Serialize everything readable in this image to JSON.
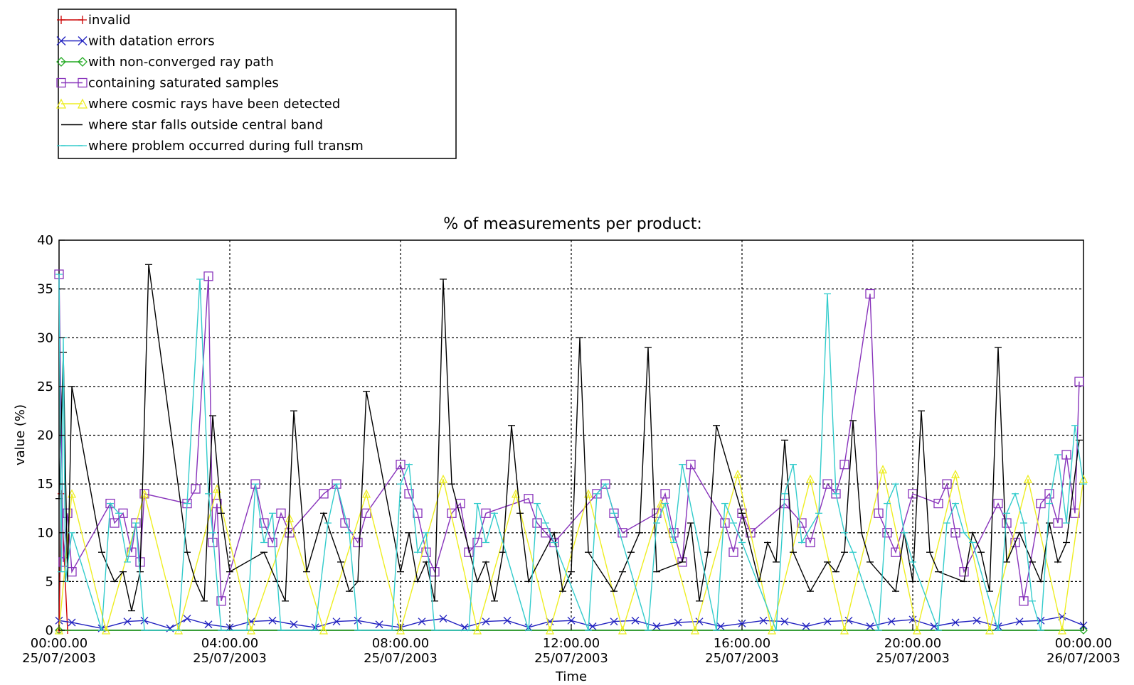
{
  "chart_data": {
    "type": "line",
    "title": "% of measurements per product:",
    "xlabel": "Time",
    "ylabel": "value (%)",
    "ylim": [
      0,
      40
    ],
    "xlim": [
      "00:00.00 25/07/2003",
      "00:00.00 26/07/2003"
    ],
    "grid": true,
    "legend_position": "top-left",
    "yticks": [
      "0",
      "5",
      "10",
      "15",
      "20",
      "25",
      "30",
      "35",
      "40"
    ],
    "xticks": [
      {
        "time": "00:00.00",
        "date": "25/07/2003"
      },
      {
        "time": "04:00.00",
        "date": "25/07/2003"
      },
      {
        "time": "08:00.00",
        "date": "25/07/2003"
      },
      {
        "time": "12:00.00",
        "date": "25/07/2003"
      },
      {
        "time": "16:00.00",
        "date": "25/07/2003"
      },
      {
        "time": "20:00.00",
        "date": "25/07/2003"
      },
      {
        "time": "00:00.00",
        "date": "26/07/2003"
      }
    ],
    "series": [
      {
        "name": "invalid",
        "color": "#cc0000",
        "marker": "plus",
        "x": [
          0.0,
          0.05,
          0.2
        ],
        "y": [
          0,
          14,
          0
        ]
      },
      {
        "name": "with datation errors",
        "color": "#1f1fbf",
        "marker": "x",
        "x": [
          0.0,
          0.3,
          1.0,
          1.6,
          2.0,
          2.6,
          3.0,
          3.5,
          4.0,
          4.5,
          5.0,
          5.5,
          6.0,
          6.5,
          7.0,
          7.5,
          8.0,
          8.5,
          9.0,
          9.5,
          10.0,
          10.5,
          11.0,
          11.5,
          12.0,
          12.5,
          13.0,
          13.5,
          14.0,
          14.5,
          15.0,
          15.5,
          16.0,
          16.5,
          17.0,
          17.5,
          18.0,
          18.5,
          19.0,
          19.5,
          20.0,
          20.5,
          21.0,
          21.5,
          22.0,
          22.5,
          23.0,
          23.5,
          24.0
        ],
        "y": [
          1.0,
          0.8,
          0.2,
          0.9,
          1.0,
          0.2,
          1.2,
          0.6,
          0.3,
          0.9,
          1.0,
          0.6,
          0.3,
          0.9,
          1.0,
          0.6,
          0.3,
          0.9,
          1.2,
          0.3,
          0.9,
          1.0,
          0.3,
          0.9,
          1.0,
          0.4,
          0.9,
          1.0,
          0.4,
          0.8,
          0.9,
          0.4,
          0.7,
          1.0,
          0.9,
          0.4,
          0.9,
          1.0,
          0.4,
          0.9,
          1.1,
          0.4,
          0.8,
          1.0,
          0.4,
          0.9,
          1.0,
          1.4,
          0.5
        ]
      },
      {
        "name": "with non-converged ray path",
        "color": "#22aa22",
        "marker": "diamond",
        "x": [
          0.0,
          24.0
        ],
        "y": [
          0,
          0
        ]
      },
      {
        "name": "containing saturated samples",
        "color": "#8833bb",
        "marker": "square",
        "x": [
          0.0,
          0.1,
          0.2,
          0.3,
          1.2,
          1.3,
          1.5,
          1.7,
          1.8,
          1.9,
          2.0,
          3.0,
          3.2,
          3.5,
          3.6,
          3.7,
          3.8,
          4.6,
          4.8,
          5.0,
          5.2,
          5.4,
          6.2,
          6.5,
          6.7,
          7.0,
          7.2,
          8.0,
          8.2,
          8.4,
          8.6,
          8.8,
          9.2,
          9.4,
          9.6,
          9.8,
          10.0,
          11.0,
          11.2,
          11.4,
          11.6,
          12.6,
          12.8,
          13.0,
          13.2,
          14.0,
          14.2,
          14.4,
          14.6,
          14.8,
          15.6,
          15.8,
          16.0,
          16.2,
          17.0,
          17.4,
          17.6,
          18.0,
          18.2,
          18.4,
          19.0,
          19.2,
          19.4,
          19.6,
          20.0,
          20.6,
          20.8,
          21.0,
          21.2,
          22.0,
          22.2,
          22.4,
          22.6,
          23.0,
          23.2,
          23.4,
          23.6,
          23.8,
          23.9
        ],
        "y": [
          36.5,
          7,
          12,
          6,
          13,
          11,
          12,
          8,
          11,
          7,
          14,
          13,
          14.5,
          36.3,
          9,
          13,
          3,
          15,
          11,
          9,
          12,
          10,
          14,
          15,
          11,
          9,
          12,
          17,
          14,
          12,
          8,
          6,
          12,
          13,
          8,
          9,
          12,
          13.5,
          11,
          10,
          9,
          14,
          15,
          12,
          10,
          12,
          14,
          10,
          7,
          17,
          11,
          8,
          12,
          10,
          13,
          11,
          9,
          15,
          14,
          17,
          34.5,
          12,
          10,
          8,
          14,
          13,
          15,
          10,
          6,
          13,
          11,
          9,
          3,
          13,
          14,
          11,
          18,
          12,
          25.5
        ]
      },
      {
        "name": "where cosmic rays have been detected",
        "color": "#eeee22",
        "marker": "triangle",
        "x": [
          0.0,
          0.3,
          1.1,
          2.0,
          2.8,
          3.7,
          4.5,
          5.4,
          6.2,
          7.2,
          8.0,
          9.0,
          9.8,
          10.7,
          11.5,
          12.4,
          13.2,
          14.1,
          14.9,
          15.9,
          16.7,
          17.6,
          18.4,
          19.3,
          20.1,
          21.0,
          21.8,
          22.7,
          23.5,
          24.0
        ],
        "y": [
          0,
          14,
          0,
          14,
          0,
          14.5,
          0,
          11.5,
          0,
          14,
          0,
          15.5,
          0,
          14,
          0,
          14,
          0,
          13,
          0,
          16,
          0,
          15.5,
          0,
          16.5,
          0,
          16,
          0,
          15.5,
          0,
          15.5
        ]
      },
      {
        "name": "where star falls outside central band",
        "color": "#000000",
        "marker": "tick",
        "x": [
          0.0,
          0.1,
          0.2,
          0.3,
          1.0,
          1.3,
          1.5,
          1.7,
          1.9,
          2.1,
          3.0,
          3.2,
          3.4,
          3.6,
          3.8,
          4.0,
          4.8,
          5.1,
          5.3,
          5.5,
          5.8,
          6.2,
          6.6,
          6.8,
          7.0,
          7.2,
          8.0,
          8.2,
          8.4,
          8.6,
          8.8,
          9.0,
          9.2,
          9.8,
          10.0,
          10.2,
          10.4,
          10.6,
          10.8,
          11.0,
          11.6,
          11.8,
          12.0,
          12.2,
          12.4,
          13.0,
          13.2,
          13.4,
          13.6,
          13.8,
          14.0,
          14.6,
          14.8,
          15.0,
          15.2,
          15.4,
          16.0,
          16.4,
          16.6,
          16.8,
          17.0,
          17.2,
          17.6,
          18.0,
          18.2,
          18.4,
          18.6,
          18.8,
          19.0,
          19.6,
          19.8,
          20.0,
          20.2,
          20.4,
          20.6,
          21.2,
          21.4,
          21.6,
          21.8,
          22.0,
          22.2,
          22.5,
          22.8,
          23.0,
          23.2,
          23.4,
          23.6,
          23.9
        ],
        "y": [
          13.5,
          28.5,
          5,
          25,
          8,
          5,
          6,
          2,
          6,
          37.5,
          8,
          5,
          3,
          22,
          12,
          6,
          8,
          5,
          3,
          22.5,
          6,
          12,
          7,
          4,
          5,
          24.5,
          6,
          10,
          5,
          7,
          3,
          36,
          15,
          5,
          7,
          3,
          8,
          21,
          12,
          5,
          10,
          4,
          6,
          30,
          8,
          4,
          6,
          8,
          10,
          29,
          6,
          7,
          11,
          3,
          8,
          21,
          12,
          5,
          9,
          7,
          19.5,
          8,
          4,
          7,
          6,
          8,
          21.5,
          10,
          7,
          4,
          10,
          5,
          22.5,
          8,
          6,
          5,
          10,
          8,
          4,
          29,
          7,
          10,
          7,
          5,
          11,
          7,
          9,
          19.5
        ]
      },
      {
        "name": "where problem occurred during full transm",
        "color": "#33cccc",
        "marker": "tick",
        "x": [
          0.0,
          0.05,
          0.1,
          0.15,
          0.3,
          1.0,
          1.2,
          1.4,
          1.6,
          1.8,
          2.0,
          2.8,
          3.0,
          3.3,
          3.5,
          3.6,
          3.8,
          4.4,
          4.6,
          4.8,
          5.0,
          5.2,
          6.0,
          6.3,
          6.5,
          6.8,
          7.0,
          7.8,
          8.0,
          8.2,
          8.4,
          8.6,
          8.8,
          9.6,
          9.8,
          10.0,
          10.2,
          11.0,
          11.2,
          11.4,
          11.6,
          12.4,
          12.6,
          12.8,
          13.0,
          13.8,
          14.0,
          14.2,
          14.4,
          14.6,
          15.4,
          15.6,
          15.8,
          16.0,
          16.8,
          17.0,
          17.2,
          17.4,
          17.8,
          18.0,
          18.2,
          18.4,
          18.6,
          19.2,
          19.4,
          19.6,
          19.8,
          20.0,
          20.6,
          20.8,
          21.0,
          21.2,
          21.4,
          22.0,
          22.2,
          22.4,
          22.6,
          22.8,
          23.0,
          23.2,
          23.4,
          23.6,
          23.8,
          24.0
        ],
        "y": [
          36.5,
          6,
          30,
          5,
          10,
          0,
          13,
          12,
          7,
          11,
          0,
          0,
          13,
          36,
          14,
          10,
          0,
          0,
          15,
          9,
          12,
          0,
          0,
          11,
          15,
          10,
          0,
          0,
          15,
          17,
          8,
          10,
          0,
          0,
          13,
          9,
          12,
          0,
          13,
          11,
          9,
          0,
          14,
          15,
          12,
          0,
          11,
          13,
          9,
          17,
          0,
          13,
          11,
          9,
          0,
          14,
          17,
          9,
          12,
          34.5,
          14,
          10,
          8,
          0,
          13,
          15,
          10,
          7,
          0,
          11,
          13,
          10,
          9,
          0,
          12,
          14,
          11,
          3,
          0,
          13,
          18,
          11,
          21,
          15
        ]
      }
    ]
  }
}
